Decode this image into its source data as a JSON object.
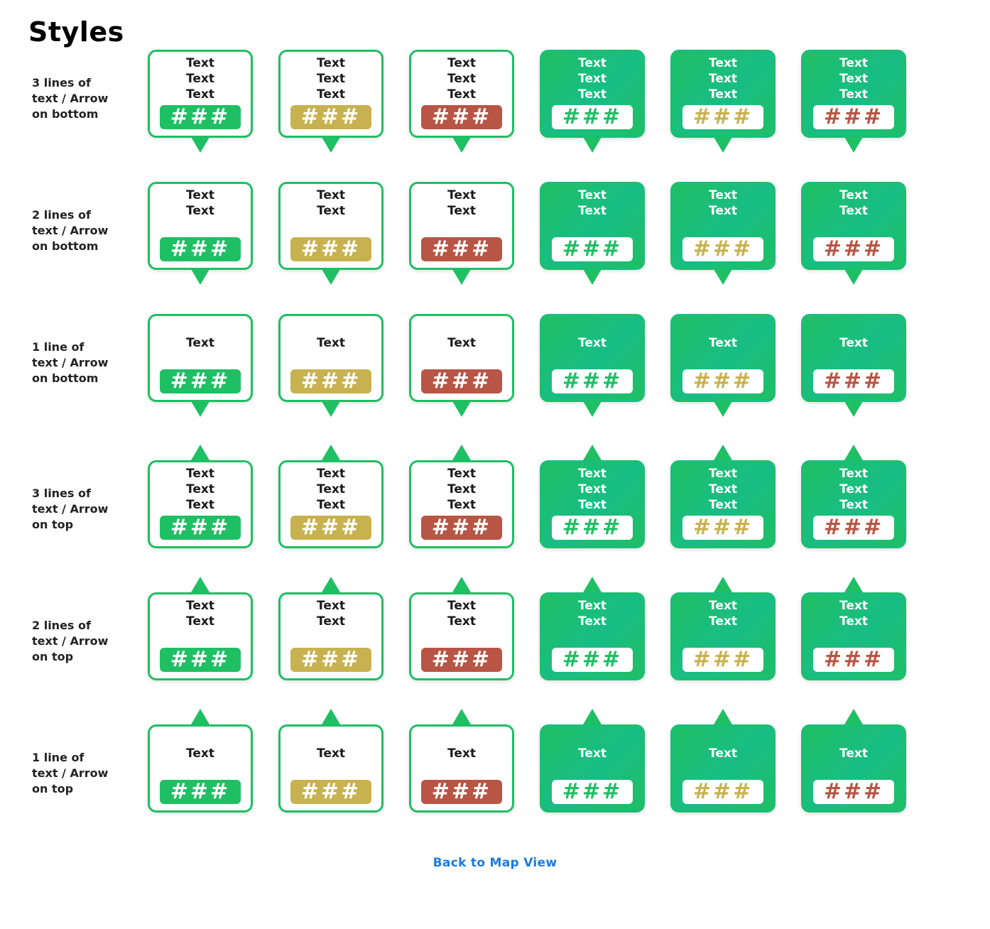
{
  "page": {
    "title": "Styles",
    "back_link": "Back to Map View"
  },
  "colors": {
    "green": "#1fbf63",
    "gold": "#c8b24f",
    "red": "#b85544",
    "link": "#1a7be6"
  },
  "badge_text": "###",
  "cell_text": "Text",
  "rows": [
    {
      "label": [
        "3 lines of",
        "text / Arrow",
        "on bottom"
      ],
      "lines": 3,
      "arrow": "bottom"
    },
    {
      "label": [
        "2 lines of",
        "text / Arrow",
        "on bottom"
      ],
      "lines": 2,
      "arrow": "bottom"
    },
    {
      "label": [
        "1 line of",
        "text / Arrow",
        "on bottom"
      ],
      "lines": 1,
      "arrow": "bottom"
    },
    {
      "label": [
        "3 lines of",
        "text / Arrow",
        "on top"
      ],
      "lines": 3,
      "arrow": "top"
    },
    {
      "label": [
        "2 lines of",
        "text / Arrow",
        "on top"
      ],
      "lines": 2,
      "arrow": "top"
    },
    {
      "label": [
        "1 line of",
        "text / Arrow",
        "on top"
      ],
      "lines": 1,
      "arrow": "top"
    }
  ],
  "variants": [
    {
      "style": "outline",
      "color": "green"
    },
    {
      "style": "outline",
      "color": "gold"
    },
    {
      "style": "outline",
      "color": "red"
    },
    {
      "style": "filled",
      "color": "green"
    },
    {
      "style": "filled",
      "color": "gold"
    },
    {
      "style": "filled",
      "color": "red"
    }
  ]
}
